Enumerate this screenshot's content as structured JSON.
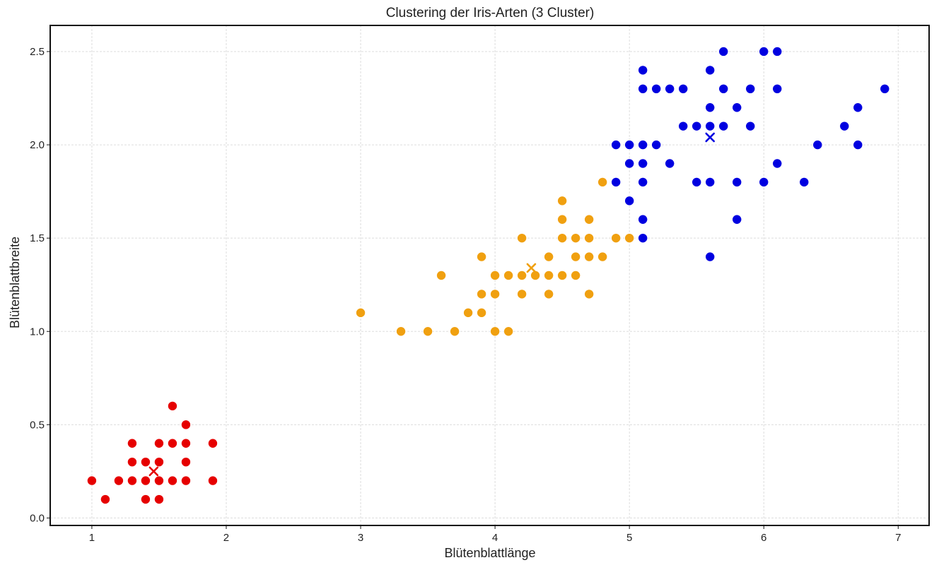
{
  "chart_data": {
    "type": "scatter",
    "title": "Clustering der Iris-Arten (3 Cluster)",
    "xlabel": "Blütenblattlänge",
    "ylabel": "Blütenblattbreite",
    "xlim": [
      0.69,
      7.23
    ],
    "ylim": [
      -0.04,
      2.64
    ],
    "xticks": [
      1,
      2,
      3,
      4,
      5,
      6,
      7
    ],
    "yticks": [
      0.0,
      0.5,
      1.0,
      1.5,
      2.0,
      2.5
    ],
    "xtick_labels": [
      "1",
      "2",
      "3",
      "4",
      "5",
      "6",
      "7"
    ],
    "ytick_labels": [
      "0.0",
      "0.5",
      "1.0",
      "1.5",
      "2.0",
      "2.5"
    ],
    "grid": true,
    "series": [
      {
        "color": "#e60000",
        "points": [
          [
            1.0,
            0.2
          ],
          [
            1.1,
            0.1
          ],
          [
            1.2,
            0.2
          ],
          [
            1.3,
            0.2
          ],
          [
            1.3,
            0.3
          ],
          [
            1.3,
            0.4
          ],
          [
            1.4,
            0.1
          ],
          [
            1.4,
            0.2
          ],
          [
            1.4,
            0.3
          ],
          [
            1.5,
            0.1
          ],
          [
            1.5,
            0.2
          ],
          [
            1.5,
            0.3
          ],
          [
            1.5,
            0.4
          ],
          [
            1.6,
            0.2
          ],
          [
            1.6,
            0.4
          ],
          [
            1.6,
            0.6
          ],
          [
            1.7,
            0.2
          ],
          [
            1.7,
            0.3
          ],
          [
            1.7,
            0.4
          ],
          [
            1.7,
            0.5
          ],
          [
            1.9,
            0.2
          ],
          [
            1.9,
            0.4
          ]
        ],
        "centroid": [
          1.46,
          0.25
        ]
      },
      {
        "color": "#f0a010",
        "points": [
          [
            3.0,
            1.1
          ],
          [
            3.3,
            1.0
          ],
          [
            3.5,
            1.0
          ],
          [
            3.6,
            1.3
          ],
          [
            3.7,
            1.0
          ],
          [
            3.8,
            1.1
          ],
          [
            3.9,
            1.1
          ],
          [
            3.9,
            1.2
          ],
          [
            3.9,
            1.4
          ],
          [
            4.0,
            1.0
          ],
          [
            4.0,
            1.2
          ],
          [
            4.0,
            1.3
          ],
          [
            4.1,
            1.0
          ],
          [
            4.1,
            1.3
          ],
          [
            4.2,
            1.2
          ],
          [
            4.2,
            1.3
          ],
          [
            4.2,
            1.5
          ],
          [
            4.3,
            1.3
          ],
          [
            4.4,
            1.2
          ],
          [
            4.4,
            1.3
          ],
          [
            4.4,
            1.4
          ],
          [
            4.5,
            1.3
          ],
          [
            4.5,
            1.5
          ],
          [
            4.5,
            1.6
          ],
          [
            4.5,
            1.7
          ],
          [
            4.6,
            1.3
          ],
          [
            4.6,
            1.4
          ],
          [
            4.6,
            1.5
          ],
          [
            4.7,
            1.2
          ],
          [
            4.7,
            1.4
          ],
          [
            4.7,
            1.5
          ],
          [
            4.7,
            1.6
          ],
          [
            4.8,
            1.4
          ],
          [
            4.8,
            1.8
          ],
          [
            4.9,
            1.5
          ],
          [
            5.0,
            1.5
          ]
        ],
        "centroid": [
          4.27,
          1.34
        ]
      },
      {
        "color": "#0000e0",
        "points": [
          [
            4.9,
            1.8
          ],
          [
            4.9,
            2.0
          ],
          [
            5.0,
            1.7
          ],
          [
            5.0,
            1.9
          ],
          [
            5.0,
            2.0
          ],
          [
            5.1,
            1.5
          ],
          [
            5.1,
            1.6
          ],
          [
            5.1,
            1.8
          ],
          [
            5.1,
            1.9
          ],
          [
            5.1,
            2.0
          ],
          [
            5.1,
            2.3
          ],
          [
            5.1,
            2.4
          ],
          [
            5.2,
            2.0
          ],
          [
            5.2,
            2.3
          ],
          [
            5.3,
            1.9
          ],
          [
            5.3,
            2.3
          ],
          [
            5.4,
            2.1
          ],
          [
            5.4,
            2.3
          ],
          [
            5.5,
            1.8
          ],
          [
            5.5,
            2.1
          ],
          [
            5.6,
            1.4
          ],
          [
            5.6,
            1.8
          ],
          [
            5.6,
            2.1
          ],
          [
            5.6,
            2.2
          ],
          [
            5.6,
            2.4
          ],
          [
            5.7,
            2.1
          ],
          [
            5.7,
            2.3
          ],
          [
            5.7,
            2.5
          ],
          [
            5.8,
            1.6
          ],
          [
            5.8,
            1.8
          ],
          [
            5.8,
            2.2
          ],
          [
            5.9,
            2.1
          ],
          [
            5.9,
            2.3
          ],
          [
            6.0,
            1.8
          ],
          [
            6.0,
            2.5
          ],
          [
            6.1,
            1.9
          ],
          [
            6.1,
            2.3
          ],
          [
            6.1,
            2.5
          ],
          [
            6.3,
            1.8
          ],
          [
            6.4,
            2.0
          ],
          [
            6.6,
            2.1
          ],
          [
            6.7,
            2.0
          ],
          [
            6.7,
            2.2
          ],
          [
            6.9,
            2.3
          ]
        ],
        "centroid": [
          5.6,
          2.04
        ]
      }
    ]
  }
}
